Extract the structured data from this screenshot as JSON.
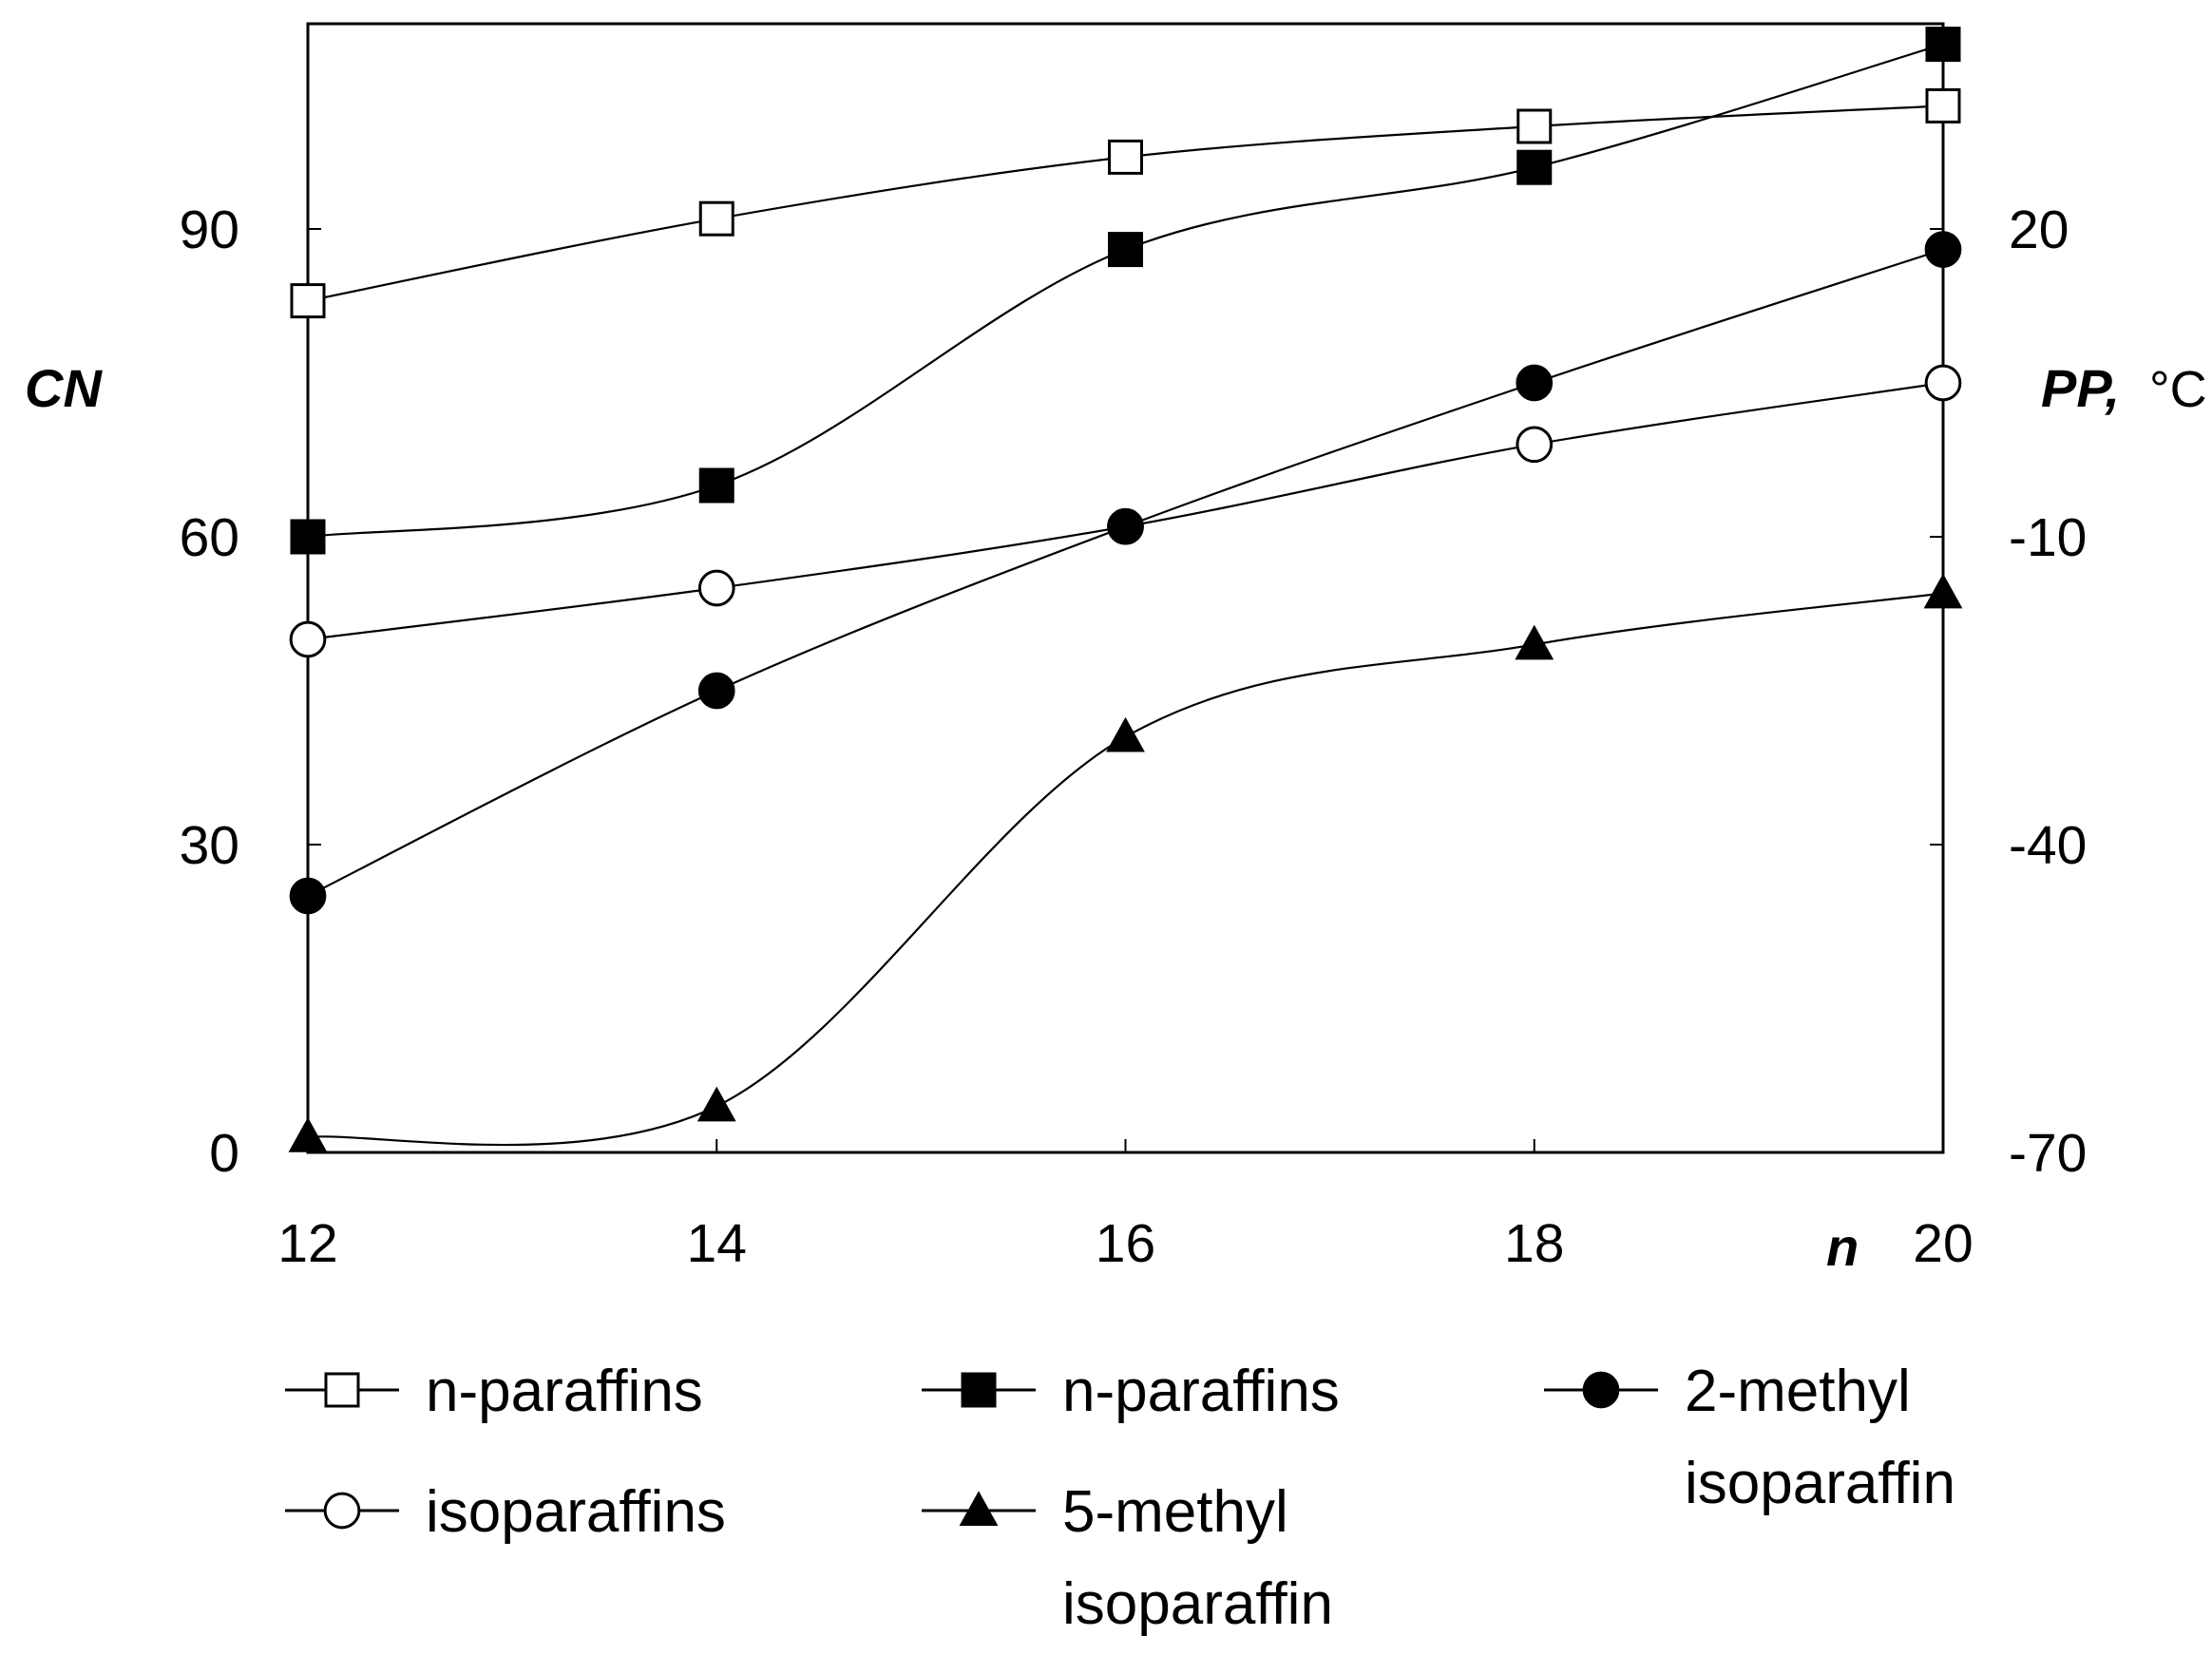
{
  "chart_data": {
    "type": "line",
    "x_label": "n",
    "x_ticks": [
      12,
      14,
      16,
      18,
      20
    ],
    "xlim": [
      12,
      20
    ],
    "y_left": {
      "label": "CN",
      "ticks": [
        0,
        30,
        60,
        90
      ],
      "ylim": [
        0,
        110
      ]
    },
    "y_right": {
      "label": "PP,",
      "unit": "°C",
      "ticks": [
        -70,
        -40,
        -10,
        20
      ],
      "ylim": [
        -70,
        40
      ]
    },
    "series": [
      {
        "name": "n-paraffins",
        "axis": "left",
        "marker": "square-open",
        "x": [
          12,
          14,
          16,
          18,
          20
        ],
        "values": [
          83,
          91,
          97,
          100,
          102
        ]
      },
      {
        "name": "n-paraffins",
        "axis": "right",
        "marker": "square-filled",
        "x": [
          12,
          14,
          16,
          18,
          20
        ],
        "values": [
          -10,
          -5,
          18,
          26,
          38
        ]
      },
      {
        "name": "isoparaffins",
        "axis": "left",
        "marker": "circle-open",
        "x": [
          12,
          14,
          16,
          18,
          20
        ],
        "values": [
          50,
          55,
          61,
          69,
          75
        ]
      },
      {
        "name": "2-methyl isoparaffin",
        "axis": "left",
        "marker": "circle-filled",
        "x": [
          12,
          14,
          16,
          18,
          20
        ],
        "values": [
          25,
          45,
          61,
          75,
          88
        ]
      },
      {
        "name": "5-methyl isoparaffin",
        "axis": "left",
        "marker": "triangle-filled",
        "x": [
          12,
          14,
          16,
          18,
          20
        ],
        "values": [
          1.5,
          4.5,
          40.5,
          49.5,
          54.5
        ]
      }
    ],
    "legend": [
      {
        "lines": [
          "n-paraffins"
        ],
        "marker": "square-open"
      },
      {
        "lines": [
          "n-paraffins"
        ],
        "marker": "square-filled"
      },
      {
        "lines": [
          "2-methyl",
          "isoparaffin"
        ],
        "marker": "circle-filled"
      },
      {
        "lines": [
          "isoparaffins"
        ],
        "marker": "circle-open"
      },
      {
        "lines": [
          "5-methyl",
          "isoparaffin"
        ],
        "marker": "triangle-filled"
      }
    ]
  }
}
